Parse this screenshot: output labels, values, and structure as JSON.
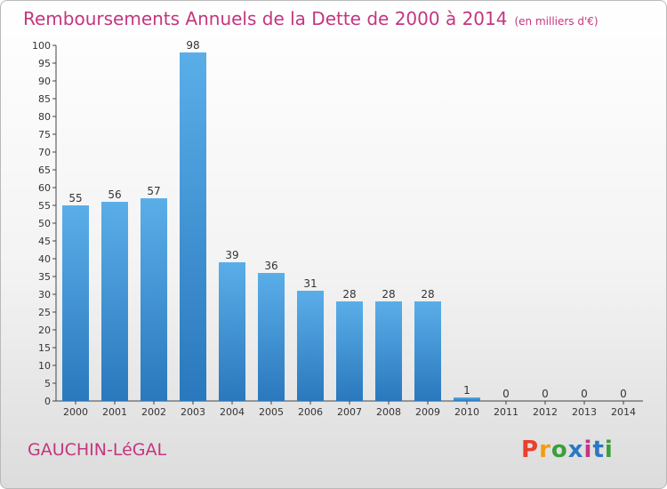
{
  "header": {
    "title": "Remboursements Annuels de la Dette de 2000 à 2014",
    "unit": "(en milliers d'€)"
  },
  "footer": {
    "commune": "GAUCHIN-LéGAL",
    "logo": {
      "letters": [
        "P",
        "r",
        "o",
        "x",
        "i",
        "t",
        "i"
      ],
      "colors": [
        "#e8412d",
        "#f39c12",
        "#3c9e3c",
        "#2b78c4",
        "#c3367f",
        "#2b78c4",
        "#3c9e3c"
      ]
    }
  },
  "colors": {
    "title": "#c3367f",
    "bar_top": "#5aaee8",
    "bar_bottom": "#2a78bd"
  },
  "chart_data": {
    "type": "bar",
    "categories": [
      "2000",
      "2001",
      "2002",
      "2003",
      "2004",
      "2005",
      "2006",
      "2007",
      "2008",
      "2009",
      "2010",
      "2011",
      "2012",
      "2013",
      "2014"
    ],
    "values": [
      55,
      56,
      57,
      98,
      39,
      36,
      31,
      28,
      28,
      28,
      1,
      0,
      0,
      0,
      0
    ],
    "ylim": [
      0,
      100
    ],
    "ytick_step": 5,
    "grid": false,
    "legend": "none",
    "xlabel": "",
    "ylabel": ""
  }
}
